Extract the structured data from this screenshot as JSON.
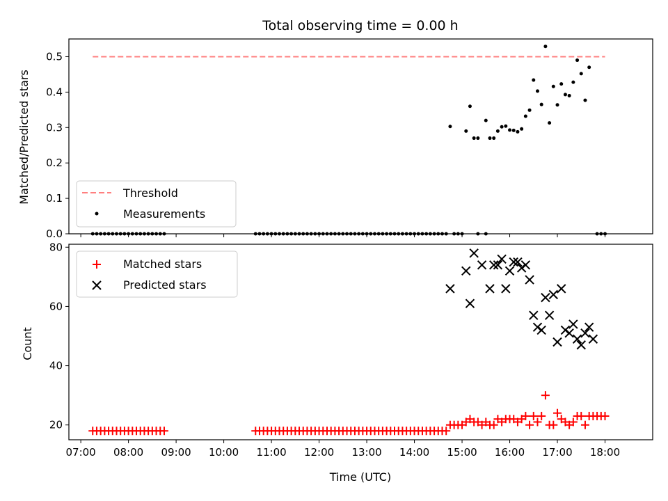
{
  "chart_data": [
    {
      "type": "scatter",
      "title": "Total observing time = 0.00 h",
      "ylabel": "Matched/Predicted stars",
      "xlabel": "",
      "ylim": [
        0,
        0.55
      ],
      "yticks": [
        0.0,
        0.1,
        0.2,
        0.3,
        0.4,
        0.5
      ],
      "ytick_labels": [
        "0.0",
        "0.1",
        "0.2",
        "0.3",
        "0.4",
        "0.5"
      ],
      "xlim": [
        "06:45",
        "19:00"
      ],
      "legend": {
        "placement": "lower-left",
        "entries": [
          {
            "label": "Threshold",
            "marker": "dashed-line",
            "color": "#ff7f7f"
          },
          {
            "label": "Measurements",
            "marker": "dot",
            "color": "#000000"
          }
        ]
      },
      "series": [
        {
          "name": "Threshold",
          "kind": "line",
          "style": "dashed",
          "color": "#ff7f7f",
          "x": [
            "07:15",
            "18:00"
          ],
          "y": [
            0.5,
            0.5
          ]
        },
        {
          "name": "Measurements",
          "kind": "scatter",
          "color": "#000000",
          "points": [
            [
              "07:15",
              0
            ],
            [
              "07:20",
              0
            ],
            [
              "07:25",
              0
            ],
            [
              "07:30",
              0
            ],
            [
              "07:35",
              0
            ],
            [
              "07:40",
              0
            ],
            [
              "07:45",
              0
            ],
            [
              "07:50",
              0
            ],
            [
              "07:55",
              0
            ],
            [
              "08:00",
              0
            ],
            [
              "08:05",
              0
            ],
            [
              "08:10",
              0
            ],
            [
              "08:15",
              0
            ],
            [
              "08:20",
              0
            ],
            [
              "08:25",
              0
            ],
            [
              "08:30",
              0
            ],
            [
              "08:35",
              0
            ],
            [
              "08:40",
              0
            ],
            [
              "08:45",
              0
            ],
            [
              "10:40",
              0
            ],
            [
              "10:45",
              0
            ],
            [
              "10:50",
              0
            ],
            [
              "10:55",
              0
            ],
            [
              "11:00",
              0
            ],
            [
              "11:05",
              0
            ],
            [
              "11:10",
              0
            ],
            [
              "11:15",
              0
            ],
            [
              "11:20",
              0
            ],
            [
              "11:25",
              0
            ],
            [
              "11:30",
              0
            ],
            [
              "11:35",
              0
            ],
            [
              "11:40",
              0
            ],
            [
              "11:45",
              0
            ],
            [
              "11:50",
              0
            ],
            [
              "11:55",
              0
            ],
            [
              "12:00",
              0
            ],
            [
              "12:05",
              0
            ],
            [
              "12:10",
              0
            ],
            [
              "12:15",
              0
            ],
            [
              "12:20",
              0
            ],
            [
              "12:25",
              0
            ],
            [
              "12:30",
              0
            ],
            [
              "12:35",
              0
            ],
            [
              "12:40",
              0
            ],
            [
              "12:45",
              0
            ],
            [
              "12:50",
              0
            ],
            [
              "12:55",
              0
            ],
            [
              "13:00",
              0
            ],
            [
              "13:05",
              0
            ],
            [
              "13:10",
              0
            ],
            [
              "13:15",
              0
            ],
            [
              "13:20",
              0
            ],
            [
              "13:25",
              0
            ],
            [
              "13:30",
              0
            ],
            [
              "13:35",
              0
            ],
            [
              "13:40",
              0
            ],
            [
              "13:45",
              0
            ],
            [
              "13:50",
              0
            ],
            [
              "13:55",
              0
            ],
            [
              "14:00",
              0
            ],
            [
              "14:05",
              0
            ],
            [
              "14:10",
              0
            ],
            [
              "14:15",
              0
            ],
            [
              "14:20",
              0
            ],
            [
              "14:25",
              0
            ],
            [
              "14:30",
              0
            ],
            [
              "14:35",
              0
            ],
            [
              "14:40",
              0
            ],
            [
              "14:50",
              0
            ],
            [
              "14:55",
              0
            ],
            [
              "15:00",
              0
            ],
            [
              "15:20",
              0
            ],
            [
              "15:30",
              0
            ],
            [
              "17:50",
              0
            ],
            [
              "17:55",
              0
            ],
            [
              "18:00",
              0
            ],
            [
              "14:45",
              0.303
            ],
            [
              "15:05",
              0.29
            ],
            [
              "15:10",
              0.36
            ],
            [
              "15:15",
              0.27
            ],
            [
              "15:20",
              0.27
            ],
            [
              "15:30",
              0.32
            ],
            [
              "15:35",
              0.27
            ],
            [
              "15:40",
              0.27
            ],
            [
              "15:45",
              0.29
            ],
            [
              "15:50",
              0.302
            ],
            [
              "15:55",
              0.304
            ],
            [
              "16:00",
              0.293
            ],
            [
              "16:05",
              0.292
            ],
            [
              "16:10",
              0.288
            ],
            [
              "16:15",
              0.296
            ],
            [
              "16:20",
              0.332
            ],
            [
              "16:25",
              0.349
            ],
            [
              "16:30",
              0.434
            ],
            [
              "16:35",
              0.403
            ],
            [
              "16:40",
              0.365
            ],
            [
              "16:45",
              0.529
            ],
            [
              "16:50",
              0.313
            ],
            [
              "16:55",
              0.416
            ],
            [
              "17:00",
              0.364
            ],
            [
              "17:05",
              0.423
            ],
            [
              "17:10",
              0.393
            ],
            [
              "17:15",
              0.39
            ],
            [
              "17:20",
              0.428
            ],
            [
              "17:25",
              0.49
            ],
            [
              "17:30",
              0.452
            ],
            [
              "17:35",
              0.377
            ],
            [
              "17:40",
              0.47
            ]
          ]
        }
      ]
    },
    {
      "type": "scatter",
      "title": "",
      "ylabel": "Count",
      "xlabel": "Time (UTC)",
      "ylim": [
        15,
        81
      ],
      "yticks": [
        20,
        40,
        60,
        80
      ],
      "ytick_labels": [
        "20",
        "40",
        "60",
        "80"
      ],
      "xlim": [
        "06:45",
        "19:00"
      ],
      "xticks": [
        "07:00",
        "08:00",
        "09:00",
        "10:00",
        "11:00",
        "12:00",
        "13:00",
        "14:00",
        "15:00",
        "16:00",
        "17:00",
        "18:00"
      ],
      "xtick_labels": [
        "07:00",
        "08:00",
        "09:00",
        "10:00",
        "11:00",
        "12:00",
        "13:00",
        "14:00",
        "15:00",
        "16:00",
        "17:00",
        "18:00"
      ],
      "legend": {
        "placement": "upper-left",
        "entries": [
          {
            "label": "Matched stars",
            "marker": "plus",
            "color": "#ff0000"
          },
          {
            "label": "Predicted stars",
            "marker": "x",
            "color": "#000000"
          }
        ]
      },
      "series": [
        {
          "name": "Matched stars",
          "kind": "scatter",
          "marker": "plus",
          "color": "#ff0000",
          "points": [
            [
              "07:15",
              18
            ],
            [
              "07:20",
              18
            ],
            [
              "07:25",
              18
            ],
            [
              "07:30",
              18
            ],
            [
              "07:35",
              18
            ],
            [
              "07:40",
              18
            ],
            [
              "07:45",
              18
            ],
            [
              "07:50",
              18
            ],
            [
              "07:55",
              18
            ],
            [
              "08:00",
              18
            ],
            [
              "08:05",
              18
            ],
            [
              "08:10",
              18
            ],
            [
              "08:15",
              18
            ],
            [
              "08:20",
              18
            ],
            [
              "08:25",
              18
            ],
            [
              "08:30",
              18
            ],
            [
              "08:35",
              18
            ],
            [
              "08:40",
              18
            ],
            [
              "08:45",
              18
            ],
            [
              "10:40",
              18
            ],
            [
              "10:45",
              18
            ],
            [
              "10:50",
              18
            ],
            [
              "10:55",
              18
            ],
            [
              "11:00",
              18
            ],
            [
              "11:05",
              18
            ],
            [
              "11:10",
              18
            ],
            [
              "11:15",
              18
            ],
            [
              "11:20",
              18
            ],
            [
              "11:25",
              18
            ],
            [
              "11:30",
              18
            ],
            [
              "11:35",
              18
            ],
            [
              "11:40",
              18
            ],
            [
              "11:45",
              18
            ],
            [
              "11:50",
              18
            ],
            [
              "11:55",
              18
            ],
            [
              "12:00",
              18
            ],
            [
              "12:05",
              18
            ],
            [
              "12:10",
              18
            ],
            [
              "12:15",
              18
            ],
            [
              "12:20",
              18
            ],
            [
              "12:25",
              18
            ],
            [
              "12:30",
              18
            ],
            [
              "12:35",
              18
            ],
            [
              "12:40",
              18
            ],
            [
              "12:45",
              18
            ],
            [
              "12:50",
              18
            ],
            [
              "12:55",
              18
            ],
            [
              "13:00",
              18
            ],
            [
              "13:05",
              18
            ],
            [
              "13:10",
              18
            ],
            [
              "13:15",
              18
            ],
            [
              "13:20",
              18
            ],
            [
              "13:25",
              18
            ],
            [
              "13:30",
              18
            ],
            [
              "13:35",
              18
            ],
            [
              "13:40",
              18
            ],
            [
              "13:45",
              18
            ],
            [
              "13:50",
              18
            ],
            [
              "13:55",
              18
            ],
            [
              "14:00",
              18
            ],
            [
              "14:05",
              18
            ],
            [
              "14:10",
              18
            ],
            [
              "14:15",
              18
            ],
            [
              "14:20",
              18
            ],
            [
              "14:25",
              18
            ],
            [
              "14:30",
              18
            ],
            [
              "14:35",
              18
            ],
            [
              "14:40",
              18
            ],
            [
              "14:45",
              20
            ],
            [
              "14:50",
              20
            ],
            [
              "14:55",
              20
            ],
            [
              "15:00",
              20
            ],
            [
              "15:05",
              21
            ],
            [
              "15:10",
              22
            ],
            [
              "15:15",
              21
            ],
            [
              "15:20",
              21
            ],
            [
              "15:25",
              20
            ],
            [
              "15:30",
              21
            ],
            [
              "15:35",
              20
            ],
            [
              "15:40",
              20
            ],
            [
              "15:45",
              22
            ],
            [
              "15:50",
              21
            ],
            [
              "15:55",
              22
            ],
            [
              "16:00",
              22
            ],
            [
              "16:05",
              22
            ],
            [
              "16:10",
              21
            ],
            [
              "16:15",
              22
            ],
            [
              "16:20",
              23
            ],
            [
              "16:25",
              20
            ],
            [
              "16:30",
              23
            ],
            [
              "16:35",
              21
            ],
            [
              "16:40",
              23
            ],
            [
              "16:45",
              30
            ],
            [
              "16:50",
              20
            ],
            [
              "16:55",
              20
            ],
            [
              "17:00",
              24
            ],
            [
              "17:05",
              22
            ],
            [
              "17:10",
              21
            ],
            [
              "17:15",
              20
            ],
            [
              "17:20",
              21
            ],
            [
              "17:25",
              23
            ],
            [
              "17:30",
              23
            ],
            [
              "17:35",
              20
            ],
            [
              "17:40",
              23
            ],
            [
              "17:45",
              23
            ],
            [
              "17:50",
              23
            ],
            [
              "17:55",
              23
            ],
            [
              "18:00",
              23
            ]
          ]
        },
        {
          "name": "Predicted stars",
          "kind": "scatter",
          "marker": "x",
          "color": "#000000",
          "points": [
            [
              "14:45",
              66
            ],
            [
              "15:05",
              72
            ],
            [
              "15:10",
              61
            ],
            [
              "15:15",
              78
            ],
            [
              "15:25",
              74
            ],
            [
              "15:35",
              66
            ],
            [
              "15:40",
              74
            ],
            [
              "15:45",
              74
            ],
            [
              "15:50",
              76
            ],
            [
              "15:55",
              66
            ],
            [
              "16:00",
              72
            ],
            [
              "16:05",
              75
            ],
            [
              "16:10",
              75
            ],
            [
              "16:15",
              73
            ],
            [
              "16:20",
              74
            ],
            [
              "16:25",
              69
            ],
            [
              "16:30",
              57
            ],
            [
              "16:35",
              53
            ],
            [
              "16:40",
              52
            ],
            [
              "16:45",
              63
            ],
            [
              "16:50",
              57
            ],
            [
              "16:55",
              64
            ],
            [
              "17:00",
              48
            ],
            [
              "17:05",
              66
            ],
            [
              "17:10",
              52
            ],
            [
              "17:15",
              51
            ],
            [
              "17:20",
              54
            ],
            [
              "17:25",
              49
            ],
            [
              "17:30",
              47
            ],
            [
              "17:35",
              51
            ],
            [
              "17:40",
              53
            ],
            [
              "17:45",
              49
            ]
          ]
        }
      ]
    }
  ]
}
